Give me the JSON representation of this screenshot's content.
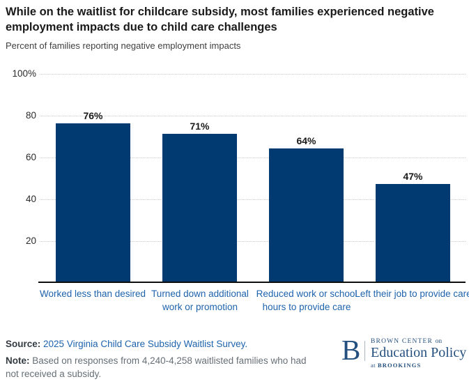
{
  "header": {
    "title": "While on the waitlist for childcare subsidy, most families experienced negative employment impacts due to child care challenges",
    "subtitle": "Percent of families reporting negative employment impacts"
  },
  "chart_data": {
    "type": "bar",
    "title": "While on the waitlist for childcare subsidy, most families experienced negative employment impacts due to child care challenges",
    "subtitle": "Percent of families reporting negative employment impacts",
    "categories": [
      "Worked less than desired",
      "Turned down additional work or promotion",
      "Reduced work or school hours to provide care",
      "Left their job to provide care"
    ],
    "values": [
      76,
      71,
      64,
      47
    ],
    "value_labels": [
      "76%",
      "71%",
      "64%",
      "47%"
    ],
    "yticks": [
      "100%",
      "80",
      "60",
      "40",
      "20"
    ],
    "ytick_values": [
      100,
      80,
      60,
      40,
      20
    ],
    "ylim": [
      0,
      100
    ],
    "xlabel": "",
    "ylabel": "",
    "grid": "horizontal-dotted",
    "legend": "none",
    "bar_color": "#003a70"
  },
  "footer": {
    "source_label": "Source:",
    "source_link": "2025 Virginia Child Care Subsidy Waitlist Survey.",
    "note_label": "Note:",
    "note_text": "Based on responses from 4,240-4,258 waitlisted families who had not received a subsidy."
  },
  "logo": {
    "letter": "B",
    "line1_caps": "BROWN CENTER",
    "line1_small": "on",
    "line2": "Education Policy",
    "line3_small": "at",
    "line3_caps": "BROOKINGS"
  },
  "colors": {
    "bar": "#003a70",
    "category_label": "#1d63ad",
    "link": "#1d63ad",
    "title": "#1a1a1a",
    "note_text": "#666f76",
    "gridline": "#c9c9c9",
    "axis_line": "#0d0d0d",
    "logo_navy": "#24507f"
  }
}
